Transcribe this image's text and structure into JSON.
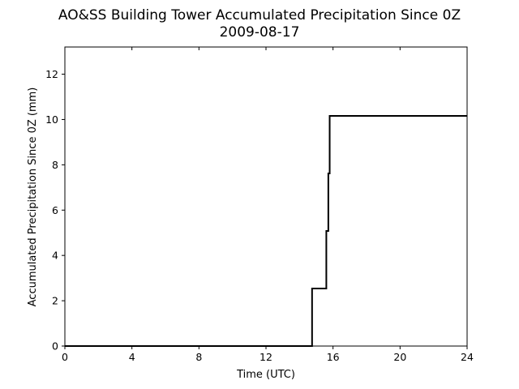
{
  "chart_data": {
    "type": "line",
    "title": "AO&SS Building Tower Accumulated Precipitation Since 0Z",
    "subtitle": "2009-08-17",
    "xlabel": "Time (UTC)",
    "ylabel": "Accumulated Precipitation Since 0Z (mm)",
    "xlim": [
      0,
      24
    ],
    "ylim": [
      0,
      13.2
    ],
    "xticks": [
      0,
      4,
      8,
      12,
      16,
      20,
      24
    ],
    "yticks": [
      0,
      2,
      4,
      6,
      8,
      10,
      12
    ],
    "grid": false,
    "legend": "none",
    "line_style": "step",
    "color": "#000000",
    "series": [
      {
        "x": [
          0,
          14.75,
          14.75,
          15.6,
          15.6,
          15.72,
          15.72,
          15.8,
          15.8,
          15.85,
          15.85,
          24
        ],
        "y": [
          0,
          0,
          2.54,
          2.54,
          5.08,
          5.08,
          7.62,
          7.62,
          10.16,
          10.16,
          10.16,
          10.16
        ]
      }
    ]
  }
}
